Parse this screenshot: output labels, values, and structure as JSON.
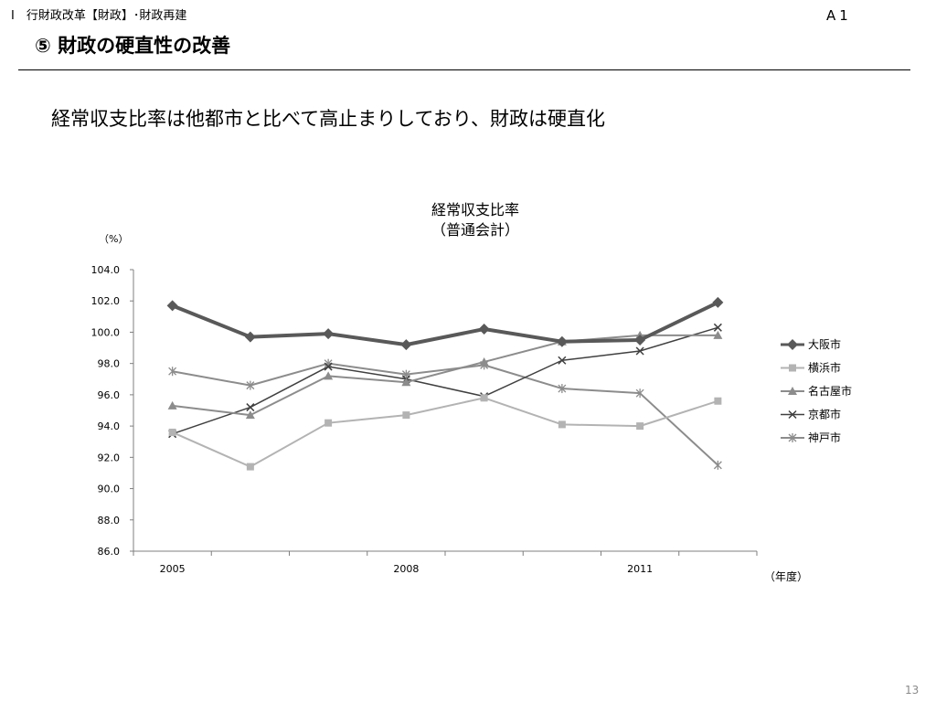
{
  "header": {
    "breadcrumb": "Ⅰ　行財政改革【財政】･財政再建",
    "slide_id": "A1",
    "title": "⑤  財政の硬直性の改善"
  },
  "headline": "経常収支比率は他都市と比べて高止まりしており、財政は硬直化",
  "page_number": "13",
  "chart_data": {
    "type": "line",
    "title": "経常収支比率",
    "subtitle": "（普通会計）",
    "ylabel": "（%）",
    "xlabel": "（年度）",
    "ylim": [
      86.0,
      104.0
    ],
    "y_ticks": [
      "86.0",
      "88.0",
      "90.0",
      "92.0",
      "94.0",
      "96.0",
      "98.0",
      "100.0",
      "102.0",
      "104.0"
    ],
    "x": [
      2005,
      2006,
      2007,
      2008,
      2009,
      2010,
      2011,
      2012
    ],
    "x_tick_labels": [
      "2005",
      "",
      "",
      "2008",
      "",
      "",
      "2011",
      ""
    ],
    "grid": false,
    "legend_position": "right",
    "series": [
      {
        "name": "大阪市",
        "color": "#595959",
        "marker": "diamond",
        "width": 4,
        "values": [
          101.7,
          99.7,
          99.9,
          99.2,
          100.2,
          99.4,
          99.5,
          101.9
        ]
      },
      {
        "name": "横浜市",
        "color": "#b3b3b3",
        "marker": "square",
        "width": 2,
        "values": [
          93.6,
          91.4,
          94.2,
          94.7,
          95.8,
          94.1,
          94.0,
          95.6
        ]
      },
      {
        "name": "名古屋市",
        "color": "#8c8c8c",
        "marker": "triangle",
        "width": 2,
        "values": [
          95.3,
          94.7,
          97.2,
          96.8,
          98.1,
          99.4,
          99.8,
          99.8
        ]
      },
      {
        "name": "京都市",
        "color": "#404040",
        "marker": "x",
        "width": 1.5,
        "values": [
          93.5,
          95.2,
          97.8,
          97.0,
          95.9,
          98.2,
          98.8,
          100.3
        ]
      },
      {
        "name": "神戸市",
        "color": "#8c8c8c",
        "marker": "asterisk",
        "width": 2,
        "values": [
          97.5,
          96.6,
          98.0,
          97.3,
          97.9,
          96.4,
          96.1,
          91.5
        ]
      }
    ]
  }
}
